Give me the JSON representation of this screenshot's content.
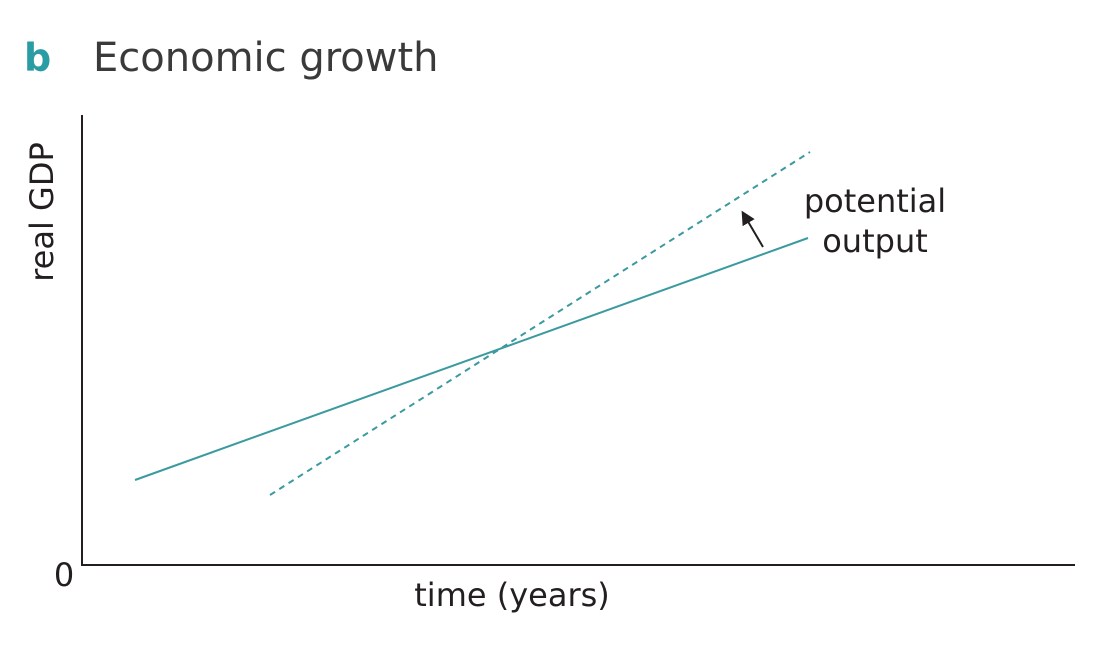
{
  "header": {
    "label": "b",
    "title": "Economic growth"
  },
  "diagram": {
    "y_axis_label": "real GDP",
    "x_axis_label": "time (years)",
    "origin_label": "0",
    "annotation": [
      "potential",
      "output"
    ]
  }
}
